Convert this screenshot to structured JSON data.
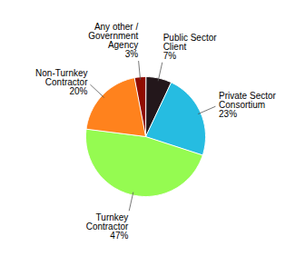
{
  "chart_data": {
    "type": "pie",
    "categories": [
      "Public Sector\nClient",
      "Private Sector\nConsortium",
      "Turnkey\nContractor",
      "Non-Turnkey\nContractor",
      "Any other /\nGovernment\nAgency"
    ],
    "values": [
      7,
      23,
      47,
      20,
      3
    ],
    "value_labels": [
      "7%",
      "23%",
      "47%",
      "20%",
      "3%"
    ],
    "data_labels": true
  }
}
